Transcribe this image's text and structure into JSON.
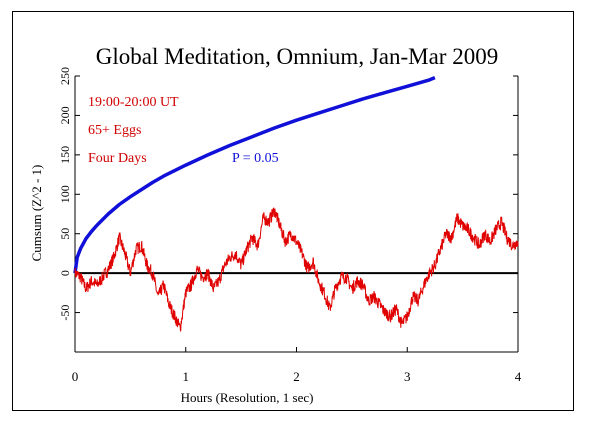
{
  "chart_data": {
    "type": "line",
    "title": "Global Meditation, Omnium, Jan-Mar 2009",
    "xlabel": "Hours (Resolution, 1 sec)",
    "ylabel": "Cumsum (Z^2 - 1)",
    "xlim": [
      0,
      4
    ],
    "ylim": [
      -100,
      250
    ],
    "x_ticks": [
      "0",
      "1",
      "2",
      "3",
      "4"
    ],
    "y_ticks": [
      "-50",
      "0",
      "50",
      "100",
      "150",
      "200",
      "250"
    ],
    "annotations": [
      "19:00-20:00 UT",
      "65+ Eggs",
      "Four Days"
    ],
    "p_label": "P = 0.05",
    "zero_line": true,
    "colors": {
      "cumsum": "#e00000",
      "probability": "#1010d8",
      "annotation": "#d00000"
    },
    "series": [
      {
        "role": "cumsum",
        "x": [
          0,
          0.05,
          0.1,
          0.15,
          0.2,
          0.25,
          0.3,
          0.35,
          0.4,
          0.45,
          0.5,
          0.55,
          0.6,
          0.65,
          0.7,
          0.75,
          0.8,
          0.85,
          0.9,
          0.95,
          1.0,
          1.05,
          1.1,
          1.15,
          1.2,
          1.25,
          1.3,
          1.35,
          1.4,
          1.45,
          1.5,
          1.55,
          1.6,
          1.65,
          1.7,
          1.75,
          1.8,
          1.85,
          1.9,
          1.95,
          2.0,
          2.05,
          2.1,
          2.15,
          2.2,
          2.25,
          2.3,
          2.35,
          2.4,
          2.45,
          2.5,
          2.55,
          2.6,
          2.65,
          2.7,
          2.75,
          2.8,
          2.85,
          2.9,
          2.95,
          3.0,
          3.05,
          3.1,
          3.15,
          3.2,
          3.25,
          3.3,
          3.35,
          3.4,
          3.45,
          3.5,
          3.55,
          3.6,
          3.65,
          3.7,
          3.75,
          3.8,
          3.85,
          3.9,
          3.95,
          4.0
        ],
        "y": [
          0,
          -5,
          -20,
          -10,
          -15,
          -5,
          5,
          20,
          45,
          25,
          0,
          30,
          35,
          10,
          0,
          -30,
          -15,
          -40,
          -55,
          -70,
          -25,
          -15,
          5,
          -5,
          0,
          -20,
          -10,
          10,
          20,
          25,
          10,
          30,
          45,
          35,
          70,
          65,
          80,
          60,
          40,
          50,
          40,
          25,
          5,
          15,
          -10,
          -25,
          -45,
          -20,
          -5,
          -5,
          -20,
          -10,
          -15,
          -35,
          -30,
          -40,
          -50,
          -55,
          -45,
          -65,
          -55,
          -30,
          -35,
          -15,
          0,
          10,
          30,
          50,
          45,
          70,
          60,
          55,
          45,
          35,
          50,
          40,
          55,
          65,
          45,
          35,
          40
        ]
      },
      {
        "role": "probability",
        "name": "P = 0.05",
        "x": [
          0,
          0.02,
          0.05,
          0.1,
          0.15,
          0.2,
          0.3,
          0.4,
          0.5,
          0.6,
          0.7,
          0.8,
          0.9,
          1.0,
          1.2,
          1.4,
          1.6,
          1.8,
          2.0,
          2.2,
          2.4,
          2.6,
          2.8,
          3.0,
          3.2,
          3.25
        ],
        "y": [
          0,
          20,
          31,
          44,
          53,
          61,
          75,
          87,
          97,
          106,
          115,
          123,
          130,
          137,
          150,
          162,
          173,
          184,
          194,
          203,
          212,
          221,
          229,
          237,
          245,
          248
        ]
      }
    ]
  }
}
